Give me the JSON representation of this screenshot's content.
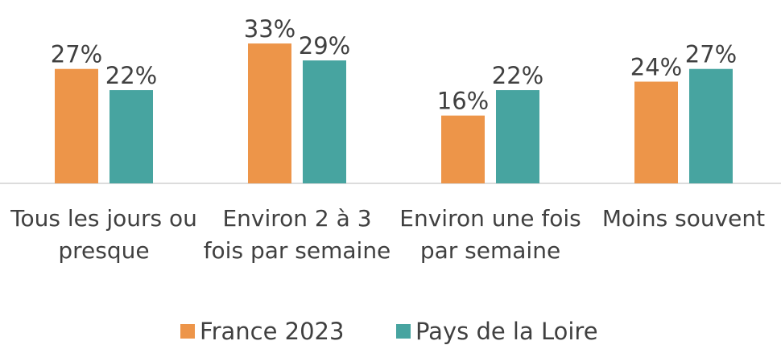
{
  "chart_data": {
    "type": "bar",
    "categories": [
      "Tous les jours ou presque",
      "Environ 2 à 3 fois par semaine",
      "Environ une fois par semaine",
      "Moins souvent"
    ],
    "series": [
      {
        "name": "France 2023",
        "color": "#ED9549",
        "values": [
          27,
          33,
          16,
          24
        ],
        "value_labels": [
          "27%",
          "33%",
          "16%",
          "24%"
        ]
      },
      {
        "name": "Pays de la Loire",
        "color": "#47A4A0",
        "values": [
          22,
          29,
          22,
          27
        ],
        "value_labels": [
          "22%",
          "29%",
          "22%",
          "27%"
        ]
      }
    ],
    "legend": "bottom"
  }
}
